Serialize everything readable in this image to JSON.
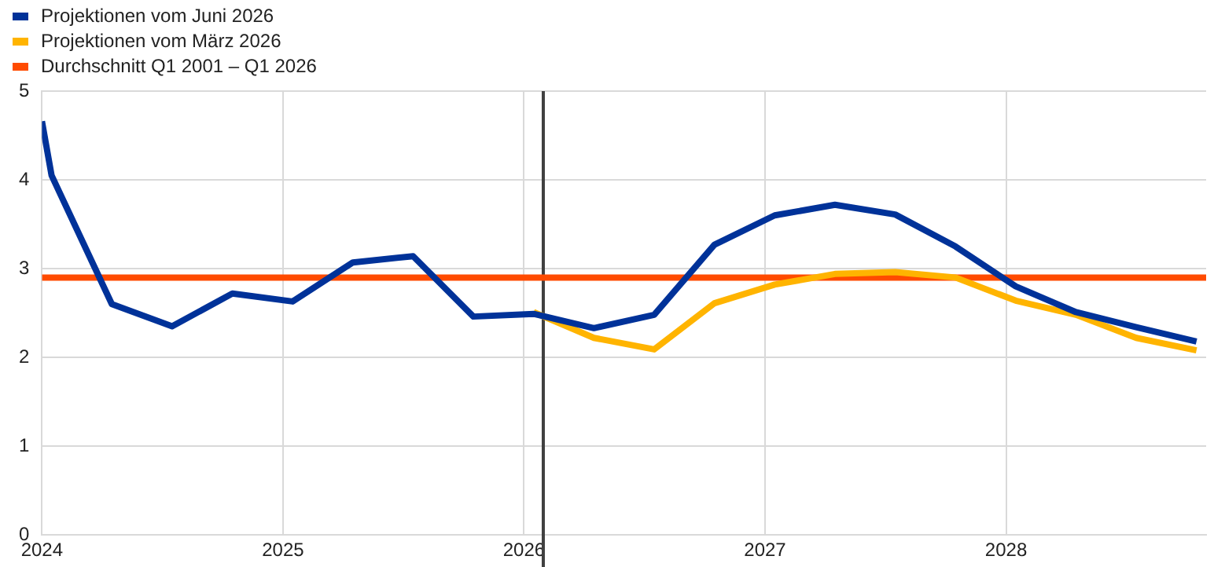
{
  "chart_data": {
    "type": "line",
    "xlim": [
      2024,
      2028.83
    ],
    "xticks": [
      2024,
      2025,
      2026,
      2027,
      2028
    ],
    "ylim": [
      0,
      5
    ],
    "yticks": [
      0,
      1,
      2,
      3,
      4,
      5
    ],
    "grid": true,
    "legend": "top left",
    "marker": "none",
    "line_style": "solid",
    "ref_lines": [
      {
        "axis": "x",
        "value": 2026.08,
        "color": "#404040"
      }
    ],
    "series": [
      {
        "name": "Projektionen vom Juni 2026",
        "color": "#003299",
        "x": [
          2024,
          2024.04,
          2024.29,
          2024.54,
          2024.79,
          2025.04,
          2025.29,
          2025.54,
          2025.79,
          2026.04,
          2026.29,
          2026.54,
          2026.79,
          2027.04,
          2027.29,
          2027.54,
          2027.79,
          2028.04,
          2028.29,
          2028.54,
          2028.79
        ],
        "values": [
          4.66,
          4.05,
          2.6,
          2.35,
          2.72,
          2.63,
          3.07,
          3.14,
          2.46,
          2.49,
          2.33,
          2.48,
          3.27,
          3.6,
          3.72,
          3.61,
          3.25,
          2.8,
          2.51,
          2.34,
          2.18
        ]
      },
      {
        "name": "Projektionen vom März 2026",
        "color": "#ffb400",
        "x": [
          2026.04,
          2026.29,
          2026.54,
          2026.79,
          2027.04,
          2027.29,
          2027.54,
          2027.79,
          2028.04,
          2028.29,
          2028.54,
          2028.79
        ],
        "values": [
          2.51,
          2.22,
          2.09,
          2.61,
          2.82,
          2.94,
          2.96,
          2.9,
          2.64,
          2.48,
          2.22,
          2.08
        ]
      },
      {
        "name": "Durchschnitt Q1 2001 – Q1 2026",
        "color": "#ff4b00",
        "x": [
          2024,
          2028.83
        ],
        "values": [
          2.9,
          2.9
        ]
      }
    ]
  }
}
